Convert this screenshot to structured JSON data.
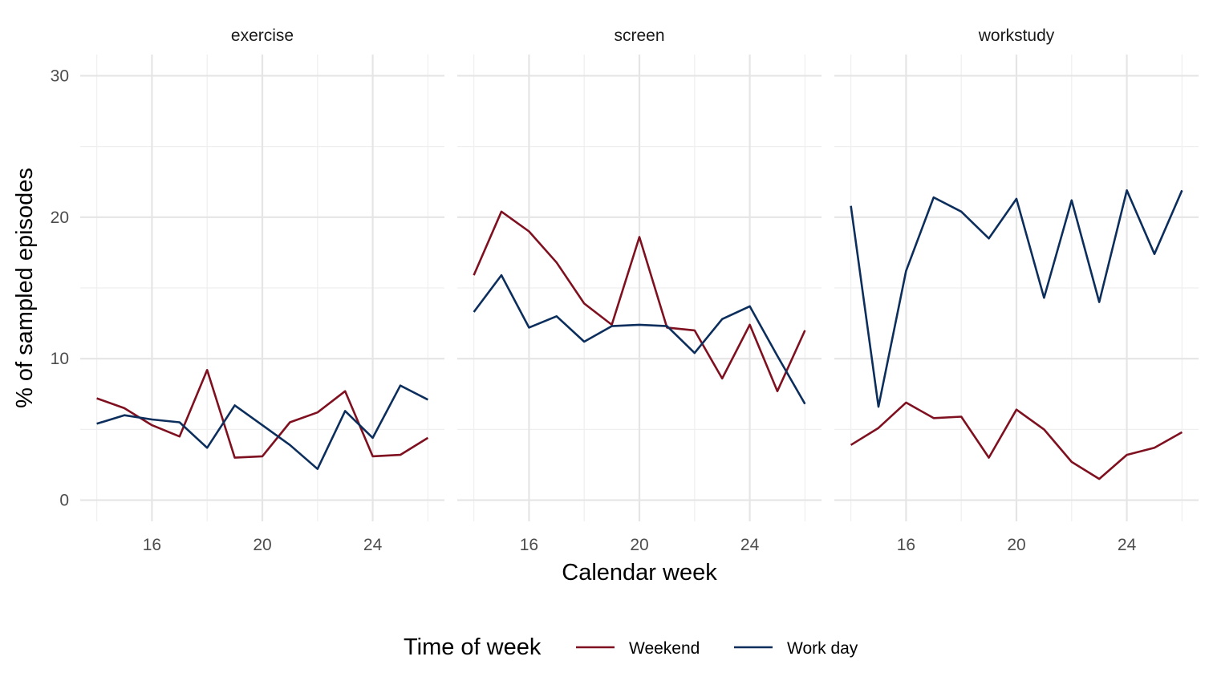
{
  "chart_data": {
    "type": "line",
    "facet_by": "panel",
    "panels": [
      "exercise",
      "screen",
      "workstudy"
    ],
    "xlabel": "Calendar week",
    "ylabel": "% of sampled episodes",
    "x_ticks": [
      16,
      20,
      24
    ],
    "y_ticks": [
      0,
      10,
      20,
      30
    ],
    "xlim": [
      13.4,
      26.6
    ],
    "ylim": [
      -1.5,
      31.5
    ],
    "grid": true,
    "legend": {
      "title": "Time of week",
      "placement": "bottom",
      "entries": [
        "Weekend",
        "Work day"
      ]
    },
    "x": [
      14,
      15,
      16,
      17,
      18,
      19,
      20,
      21,
      22,
      23,
      24,
      25,
      26
    ],
    "series": [
      {
        "panel": "exercise",
        "name": "Weekend",
        "color": "#7f1020",
        "values": [
          7.2,
          6.5,
          5.3,
          4.5,
          9.2,
          3.0,
          3.1,
          5.5,
          6.2,
          7.7,
          3.1,
          3.2,
          4.4
        ]
      },
      {
        "panel": "exercise",
        "name": "Work day",
        "color": "#0c2e5c",
        "values": [
          5.4,
          6.0,
          5.7,
          5.5,
          3.7,
          6.7,
          5.3,
          3.9,
          2.2,
          6.3,
          4.4,
          8.1,
          7.1
        ]
      },
      {
        "panel": "screen",
        "name": "Weekend",
        "color": "#7f1020",
        "values": [
          15.9,
          20.4,
          19.0,
          16.8,
          13.9,
          12.4,
          18.6,
          12.2,
          12.0,
          8.6,
          12.4,
          7.7,
          12.0
        ]
      },
      {
        "panel": "screen",
        "name": "Work day",
        "color": "#0c2e5c",
        "values": [
          13.3,
          15.9,
          12.2,
          13.0,
          11.2,
          12.3,
          12.4,
          12.3,
          10.4,
          12.8,
          13.7,
          10.2,
          6.8
        ]
      },
      {
        "panel": "workstudy",
        "name": "Weekend",
        "color": "#7f1020",
        "values": [
          3.9,
          5.1,
          6.9,
          5.8,
          5.9,
          3.0,
          6.4,
          5.0,
          2.7,
          1.5,
          3.2,
          3.7,
          4.8
        ]
      },
      {
        "panel": "workstudy",
        "name": "Work day",
        "color": "#0c2e5c",
        "values": [
          20.8,
          6.6,
          16.2,
          21.4,
          20.4,
          18.5,
          21.3,
          14.3,
          21.2,
          14.0,
          21.9,
          17.4,
          21.9
        ]
      }
    ]
  }
}
